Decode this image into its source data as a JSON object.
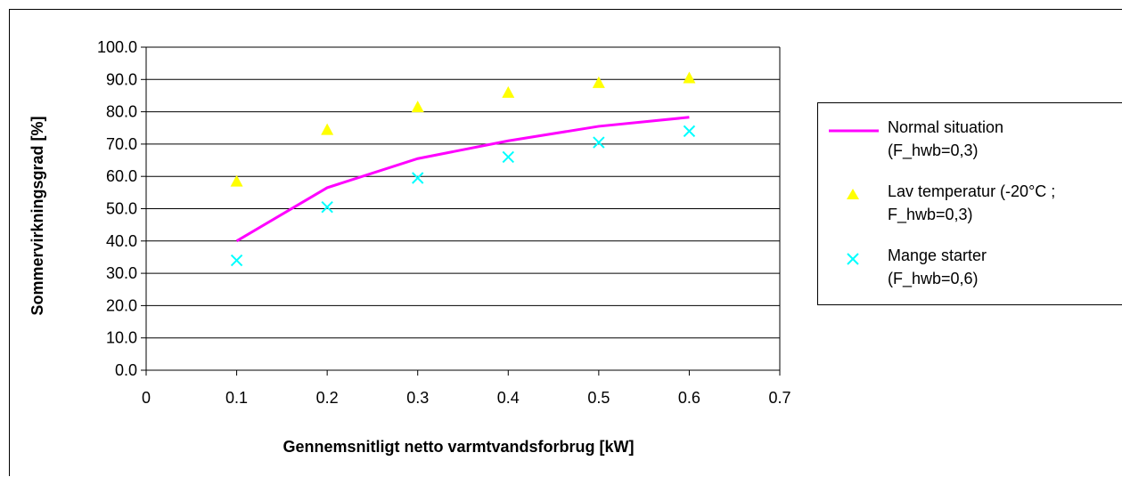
{
  "chart_data": {
    "type": "scatter",
    "title": "",
    "xlabel": "Gennemsnitligt netto varmtvandsforbrug [kW]",
    "ylabel": "Sommervirkningsgrad [%]",
    "xlim": [
      0,
      0.7
    ],
    "ylim": [
      0,
      100
    ],
    "x_ticks": [
      "0",
      "0.1",
      "0.2",
      "0.3",
      "0.4",
      "0.5",
      "0.6",
      "0.7"
    ],
    "y_ticks": [
      "0.0",
      "10.0",
      "20.0",
      "30.0",
      "40.0",
      "50.0",
      "60.0",
      "70.0",
      "80.0",
      "90.0",
      "100.0"
    ],
    "grid": "horizontal",
    "legend_position": "right",
    "series": [
      {
        "name_lines": [
          "Normal situation",
          "(F_hwb=0,3)"
        ],
        "style": "line",
        "color": "#ff00ff",
        "x": [
          0.1,
          0.2,
          0.3,
          0.4,
          0.5,
          0.6
        ],
        "y": [
          40.0,
          56.5,
          65.5,
          71.0,
          75.5,
          78.3
        ]
      },
      {
        "name_lines": [
          "Lav temperatur (-20°C ;",
          "F_hwb=0,3)"
        ],
        "style": "triangle",
        "color": "#ffff00",
        "x": [
          0.1,
          0.2,
          0.3,
          0.4,
          0.5,
          0.6
        ],
        "y": [
          58.5,
          74.5,
          81.5,
          86.0,
          89.0,
          90.5
        ]
      },
      {
        "name_lines": [
          "Mange starter",
          "(F_hwb=0,6)"
        ],
        "style": "x",
        "color": "#00ffff",
        "x": [
          0.1,
          0.2,
          0.3,
          0.4,
          0.5,
          0.6
        ],
        "y": [
          34.0,
          50.5,
          59.5,
          66.0,
          70.5,
          74.0
        ]
      }
    ]
  }
}
